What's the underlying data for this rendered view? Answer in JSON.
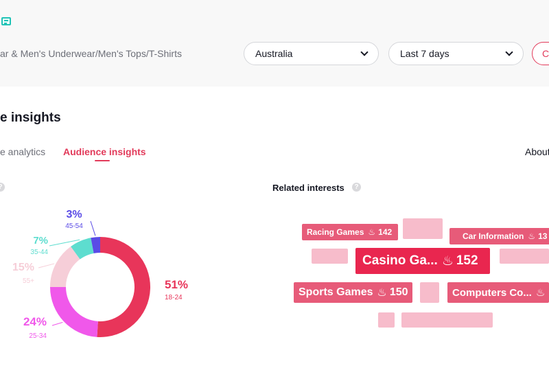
{
  "header": {
    "breadcrumb": "ar & Men's Underwear/Men's Tops/T-Shirts",
    "country_select": "Australia",
    "period_select": "Last 7 days",
    "action_button": "C"
  },
  "section": {
    "title": "e insights",
    "tabs": [
      {
        "label": "e analytics",
        "active": false
      },
      {
        "label": "Audience insights",
        "active": true
      }
    ],
    "about_link": "About"
  },
  "age_chart": {
    "help_icon": "help-icon",
    "chart_data": {
      "type": "pie",
      "series": [
        {
          "label": "18-24",
          "value": 51,
          "display": "51%",
          "color": "#e8355a"
        },
        {
          "label": "25-34",
          "value": 24,
          "display": "24%",
          "color": "#f058ea"
        },
        {
          "label": "55+",
          "value": 15,
          "display": "15%",
          "color": "#f6ced8"
        },
        {
          "label": "35-44",
          "value": 7,
          "display": "7%",
          "color": "#5dddcf"
        },
        {
          "label": "45-54",
          "value": 3,
          "display": "3%",
          "color": "#5a4be6"
        }
      ]
    }
  },
  "related_interests": {
    "title": "Related interests",
    "tags": [
      {
        "label": "Racing Games",
        "count": "142",
        "style": "mid"
      },
      {
        "label": "Car Information",
        "count": "13",
        "style": "mid"
      },
      {
        "label": "Casino Ga...",
        "count": "152",
        "style": "strong"
      },
      {
        "label": "Sports Games",
        "count": "150",
        "style": "mid"
      },
      {
        "label": "Computers Co...",
        "count": "",
        "style": "mid"
      }
    ]
  }
}
